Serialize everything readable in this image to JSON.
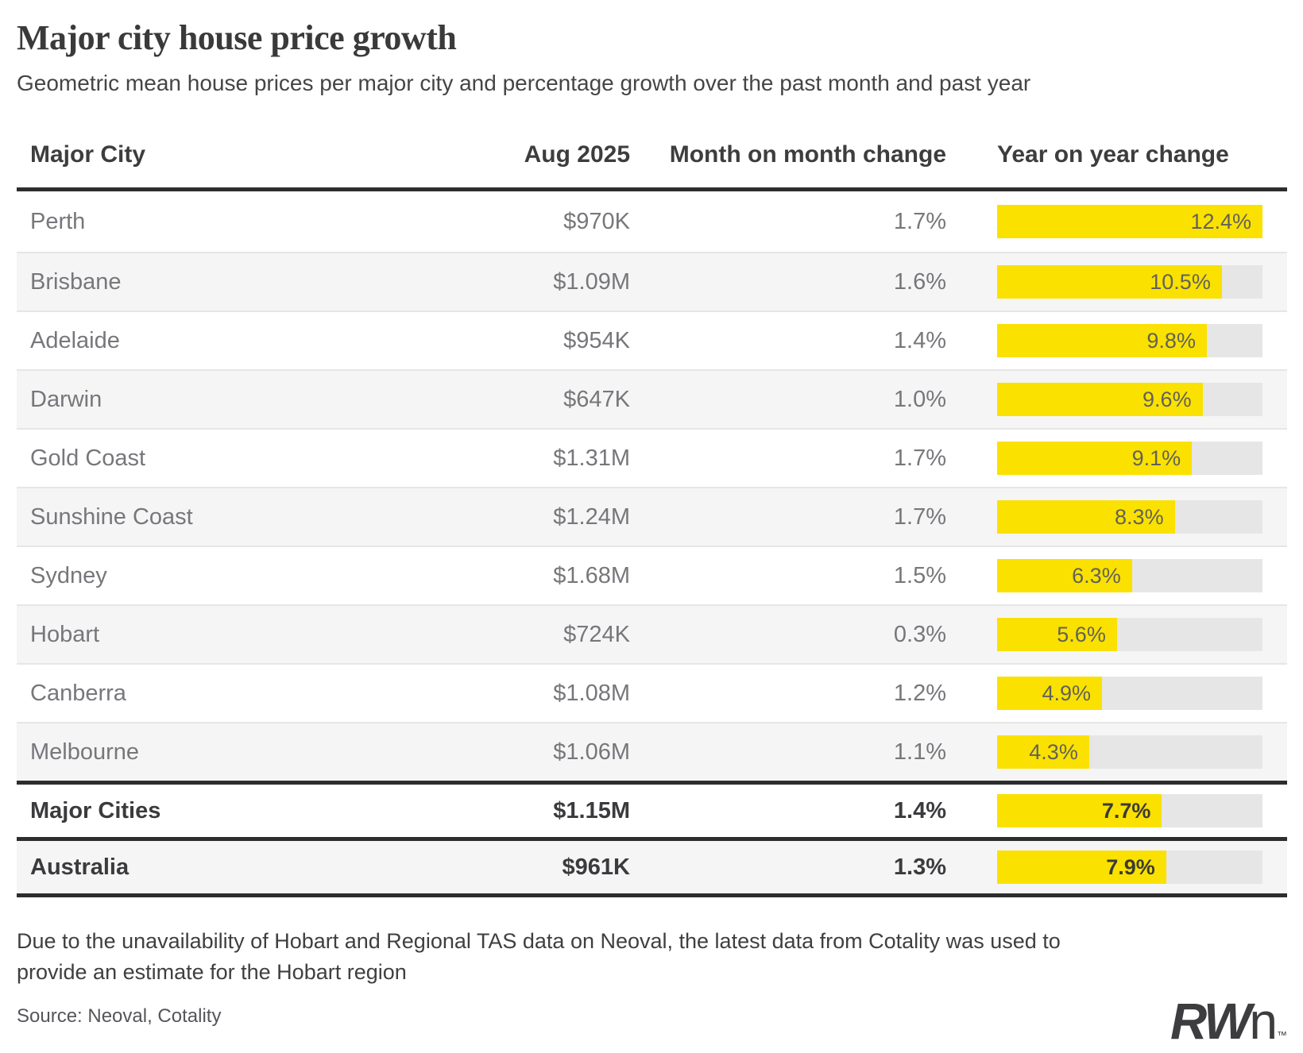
{
  "header": {
    "title": "Major city house price growth",
    "subtitle": "Geometric mean house prices per major city and percentage growth over the past month and past year"
  },
  "table": {
    "columns": [
      "Major City",
      "Aug 2025",
      "Month on month change",
      "Year on year change"
    ]
  },
  "chart_data": {
    "type": "table",
    "title": "Major city house price growth",
    "subtitle": "Geometric mean house prices per major city and percentage growth over the past month and past year",
    "columns": [
      "Major City",
      "Aug 2025",
      "Month on month change",
      "Year on year change"
    ],
    "bar_column": "Year on year change",
    "bar_axis_max": 12.4,
    "bar_color": "#fae100",
    "track_color": "#e6e6e6",
    "rows": [
      {
        "city": "Perth",
        "price": "$970K",
        "mom": "1.7%",
        "yoy": 12.4,
        "yoy_label": "12.4%",
        "summary": false
      },
      {
        "city": "Brisbane",
        "price": "$1.09M",
        "mom": "1.6%",
        "yoy": 10.5,
        "yoy_label": "10.5%",
        "summary": false
      },
      {
        "city": "Adelaide",
        "price": "$954K",
        "mom": "1.4%",
        "yoy": 9.8,
        "yoy_label": "9.8%",
        "summary": false
      },
      {
        "city": "Darwin",
        "price": "$647K",
        "mom": "1.0%",
        "yoy": 9.6,
        "yoy_label": "9.6%",
        "summary": false
      },
      {
        "city": "Gold Coast",
        "price": "$1.31M",
        "mom": "1.7%",
        "yoy": 9.1,
        "yoy_label": "9.1%",
        "summary": false
      },
      {
        "city": "Sunshine Coast",
        "price": "$1.24M",
        "mom": "1.7%",
        "yoy": 8.3,
        "yoy_label": "8.3%",
        "summary": false
      },
      {
        "city": "Sydney",
        "price": "$1.68M",
        "mom": "1.5%",
        "yoy": 6.3,
        "yoy_label": "6.3%",
        "summary": false
      },
      {
        "city": "Hobart",
        "price": "$724K",
        "mom": "0.3%",
        "yoy": 5.6,
        "yoy_label": "5.6%",
        "summary": false
      },
      {
        "city": "Canberra",
        "price": "$1.08M",
        "mom": "1.2%",
        "yoy": 4.9,
        "yoy_label": "4.9%",
        "summary": false
      },
      {
        "city": "Melbourne",
        "price": "$1.06M",
        "mom": "1.1%",
        "yoy": 4.3,
        "yoy_label": "4.3%",
        "summary": false
      },
      {
        "city": "Major Cities",
        "price": "$1.15M",
        "mom": "1.4%",
        "yoy": 7.7,
        "yoy_label": "7.7%",
        "summary": true
      },
      {
        "city": "Australia",
        "price": "$961K",
        "mom": "1.3%",
        "yoy": 7.9,
        "yoy_label": "7.9%",
        "summary": true
      }
    ]
  },
  "footer": {
    "note": "Due to the unavailability of Hobart and Regional TAS data on Neoval, the latest data from Cotality was used to provide an estimate for the Hobart region",
    "source": "Source: Neoval, Cotality",
    "logo": {
      "bold": "RW",
      "light": "n",
      "tm": "™"
    }
  }
}
